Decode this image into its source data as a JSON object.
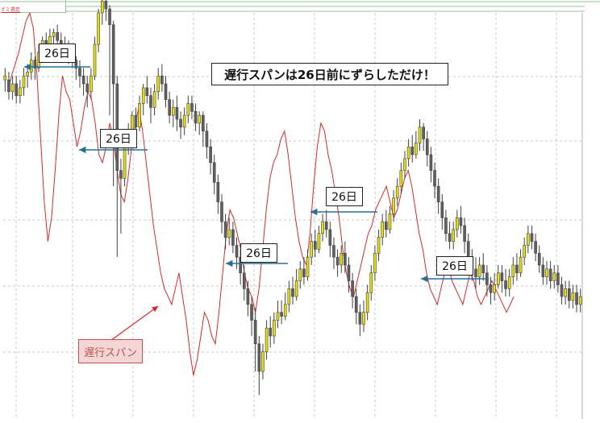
{
  "header": {
    "tab_label": "ｶﾞｽ 週足",
    "colors": {
      "tab_border": "#9bbf9b",
      "tab_text": "#cc2a2a"
    }
  },
  "annotations": {
    "headline": "遅行スパンは26日前にずらしただけ！",
    "shift_labels": [
      "26日",
      "26日",
      "26日",
      "26日",
      "26日"
    ],
    "legend_label": "遅行スパン"
  },
  "chart_data": {
    "type": "candlestick",
    "title": "",
    "xlabel": "",
    "ylabel": "",
    "x_range": [
      0,
      180
    ],
    "y_range": [
      0,
      100
    ],
    "grid": true,
    "series": [
      {
        "kind": "ohlc",
        "candles": [
          [
            84,
            83,
            86,
            80,
            1
          ],
          [
            83,
            80,
            85,
            78,
            0
          ],
          [
            80,
            82,
            84,
            78,
            1
          ],
          [
            82,
            79,
            84,
            77,
            0
          ],
          [
            79,
            81,
            83,
            77,
            1
          ],
          [
            81,
            84,
            86,
            79,
            1
          ],
          [
            84,
            85,
            87,
            81,
            1
          ],
          [
            85,
            88,
            90,
            83,
            1
          ],
          [
            88,
            86,
            89,
            83,
            0
          ],
          [
            86,
            90,
            92,
            85,
            1
          ],
          [
            90,
            93,
            94,
            88,
            1
          ],
          [
            93,
            91,
            95,
            89,
            0
          ],
          [
            91,
            94,
            96,
            90,
            1
          ],
          [
            94,
            95,
            96,
            92,
            1
          ],
          [
            95,
            93,
            97,
            91,
            0
          ],
          [
            93,
            91,
            95,
            89,
            0
          ],
          [
            91,
            92,
            94,
            88,
            1
          ],
          [
            92,
            90,
            93,
            87,
            0
          ],
          [
            90,
            88,
            92,
            86,
            0
          ],
          [
            88,
            86,
            89,
            83,
            0
          ],
          [
            86,
            84,
            88,
            81,
            0
          ],
          [
            84,
            82,
            86,
            79,
            0
          ],
          [
            82,
            80,
            84,
            76,
            0
          ],
          [
            80,
            84,
            86,
            78,
            1
          ],
          [
            84,
            92,
            94,
            83,
            1
          ],
          [
            92,
            100,
            101,
            90,
            1
          ],
          [
            100,
            103,
            104,
            97,
            1
          ],
          [
            103,
            101,
            104,
            98,
            0
          ],
          [
            101,
            97,
            102,
            74,
            0
          ],
          [
            97,
            82,
            98,
            56,
            0
          ],
          [
            82,
            60,
            84,
            38,
            0
          ],
          [
            60,
            58,
            63,
            44,
            0
          ],
          [
            58,
            66,
            68,
            56,
            1
          ],
          [
            66,
            70,
            72,
            64,
            1
          ],
          [
            70,
            74,
            75,
            66,
            1
          ],
          [
            74,
            71,
            76,
            69,
            0
          ],
          [
            71,
            77,
            79,
            70,
            1
          ],
          [
            77,
            81,
            82,
            74,
            1
          ],
          [
            81,
            79,
            84,
            77,
            0
          ],
          [
            79,
            76,
            81,
            72,
            0
          ],
          [
            76,
            80,
            82,
            74,
            1
          ],
          [
            80,
            84,
            86,
            78,
            1
          ],
          [
            84,
            82,
            87,
            80,
            0
          ],
          [
            82,
            78,
            84,
            76,
            0
          ],
          [
            78,
            74,
            80,
            72,
            0
          ],
          [
            74,
            76,
            78,
            71,
            1
          ],
          [
            76,
            73,
            79,
            70,
            0
          ],
          [
            73,
            71,
            75,
            68,
            0
          ],
          [
            71,
            74,
            76,
            69,
            1
          ],
          [
            74,
            77,
            79,
            72,
            1
          ],
          [
            77,
            75,
            79,
            73,
            0
          ],
          [
            75,
            72,
            77,
            70,
            0
          ],
          [
            72,
            74,
            75,
            69,
            1
          ],
          [
            74,
            70,
            75,
            66,
            0
          ],
          [
            70,
            66,
            72,
            63,
            0
          ],
          [
            66,
            62,
            68,
            59,
            0
          ],
          [
            62,
            57,
            64,
            54,
            0
          ],
          [
            57,
            52,
            59,
            49,
            0
          ],
          [
            52,
            47,
            54,
            44,
            0
          ],
          [
            47,
            43,
            49,
            40,
            0
          ],
          [
            43,
            45,
            48,
            41,
            1
          ],
          [
            45,
            41,
            47,
            39,
            0
          ],
          [
            41,
            38,
            43,
            35,
            0
          ],
          [
            38,
            34,
            40,
            31,
            0
          ],
          [
            34,
            30,
            36,
            27,
            0
          ],
          [
            30,
            26,
            32,
            23,
            0
          ],
          [
            26,
            22,
            28,
            18,
            0
          ],
          [
            22,
            16,
            25,
            9,
            0
          ],
          [
            16,
            9,
            18,
            3,
            0
          ],
          [
            9,
            14,
            16,
            7,
            1
          ],
          [
            14,
            20,
            22,
            12,
            1
          ],
          [
            20,
            18,
            23,
            15,
            0
          ],
          [
            18,
            22,
            24,
            16,
            1
          ],
          [
            22,
            24,
            27,
            20,
            1
          ],
          [
            24,
            23,
            27,
            21,
            0
          ],
          [
            23,
            26,
            29,
            22,
            1
          ],
          [
            26,
            30,
            32,
            24,
            1
          ],
          [
            30,
            28,
            33,
            26,
            0
          ],
          [
            28,
            32,
            35,
            27,
            1
          ],
          [
            32,
            35,
            37,
            30,
            1
          ],
          [
            35,
            33,
            38,
            31,
            0
          ],
          [
            33,
            38,
            40,
            32,
            1
          ],
          [
            38,
            42,
            44,
            36,
            1
          ],
          [
            42,
            40,
            45,
            38,
            0
          ],
          [
            40,
            44,
            46,
            39,
            1
          ],
          [
            44,
            47,
            49,
            42,
            1
          ],
          [
            47,
            45,
            50,
            43,
            0
          ],
          [
            45,
            41,
            47,
            38,
            0
          ],
          [
            41,
            38,
            43,
            35,
            0
          ],
          [
            38,
            36,
            40,
            33,
            0
          ],
          [
            36,
            39,
            41,
            34,
            1
          ],
          [
            39,
            36,
            42,
            34,
            0
          ],
          [
            36,
            32,
            38,
            29,
            0
          ],
          [
            32,
            28,
            34,
            25,
            0
          ],
          [
            28,
            24,
            30,
            21,
            0
          ],
          [
            24,
            21,
            26,
            18,
            0
          ],
          [
            21,
            24,
            27,
            19,
            1
          ],
          [
            24,
            29,
            31,
            22,
            1
          ],
          [
            29,
            34,
            36,
            27,
            1
          ],
          [
            34,
            39,
            41,
            32,
            1
          ],
          [
            39,
            43,
            45,
            37,
            1
          ],
          [
            43,
            47,
            49,
            41,
            1
          ],
          [
            47,
            45,
            50,
            43,
            0
          ],
          [
            45,
            49,
            51,
            44,
            1
          ],
          [
            49,
            53,
            55,
            47,
            1
          ],
          [
            53,
            56,
            58,
            51,
            1
          ],
          [
            56,
            60,
            62,
            54,
            1
          ],
          [
            60,
            63,
            65,
            58,
            1
          ],
          [
            63,
            66,
            68,
            61,
            1
          ],
          [
            66,
            64,
            69,
            62,
            0
          ],
          [
            64,
            67,
            70,
            63,
            1
          ],
          [
            67,
            71,
            73,
            65,
            1
          ],
          [
            71,
            68,
            72,
            65,
            0
          ],
          [
            68,
            64,
            70,
            61,
            0
          ],
          [
            64,
            60,
            66,
            57,
            0
          ],
          [
            60,
            56,
            62,
            53,
            0
          ],
          [
            56,
            52,
            58,
            49,
            0
          ],
          [
            52,
            48,
            54,
            45,
            0
          ],
          [
            48,
            44,
            50,
            42,
            0
          ],
          [
            44,
            42,
            47,
            40,
            0
          ],
          [
            42,
            45,
            47,
            40,
            1
          ],
          [
            45,
            48,
            50,
            43,
            1
          ],
          [
            48,
            46,
            51,
            44,
            0
          ],
          [
            46,
            42,
            48,
            39,
            0
          ],
          [
            42,
            38,
            44,
            35,
            0
          ],
          [
            38,
            35,
            40,
            32,
            0
          ],
          [
            35,
            33,
            38,
            30,
            0
          ],
          [
            33,
            36,
            38,
            31,
            1
          ],
          [
            36,
            34,
            39,
            32,
            0
          ],
          [
            34,
            31,
            36,
            28,
            0
          ],
          [
            31,
            29,
            33,
            26,
            0
          ],
          [
            29,
            31,
            34,
            27,
            1
          ],
          [
            31,
            34,
            36,
            30,
            1
          ],
          [
            34,
            32,
            36,
            29,
            0
          ],
          [
            32,
            30,
            35,
            28,
            0
          ],
          [
            30,
            33,
            35,
            28,
            1
          ],
          [
            33,
            36,
            38,
            31,
            1
          ],
          [
            36,
            34,
            39,
            32,
            0
          ],
          [
            34,
            38,
            40,
            33,
            1
          ],
          [
            38,
            41,
            43,
            36,
            1
          ],
          [
            41,
            44,
            46,
            39,
            1
          ],
          [
            44,
            42,
            46,
            40,
            0
          ],
          [
            42,
            39,
            44,
            37,
            0
          ],
          [
            39,
            36,
            41,
            34,
            0
          ],
          [
            36,
            33,
            38,
            31,
            0
          ],
          [
            33,
            35,
            37,
            31,
            1
          ],
          [
            35,
            32,
            37,
            30,
            0
          ],
          [
            32,
            34,
            36,
            30,
            1
          ],
          [
            34,
            31,
            36,
            29,
            0
          ],
          [
            31,
            28,
            33,
            26,
            0
          ],
          [
            28,
            30,
            32,
            26,
            1
          ],
          [
            30,
            27,
            32,
            25,
            0
          ],
          [
            27,
            29,
            31,
            25,
            1
          ],
          [
            29,
            26,
            31,
            24,
            0
          ],
          [
            26,
            28,
            30,
            24,
            1
          ]
        ]
      },
      {
        "kind": "line",
        "values": [
          80,
          84,
          87,
          90,
          94,
          98,
          100,
          96,
          84,
          68,
          52,
          42,
          48,
          60,
          74,
          84,
          80,
          78,
          72,
          66,
          70,
          76,
          80,
          78,
          72,
          64,
          62,
          66,
          72,
          68,
          60,
          54,
          52,
          58,
          66,
          72,
          76,
          70,
          62,
          54,
          46,
          40,
          34,
          30,
          28,
          26,
          30,
          34,
          28,
          22,
          14,
          8,
          12,
          18,
          24,
          22,
          18,
          16,
          24,
          34,
          44,
          50,
          48,
          44,
          40,
          34,
          30,
          28,
          24,
          30,
          40,
          50,
          58,
          62,
          64,
          68,
          70,
          64,
          56,
          48,
          42,
          38,
          36,
          44,
          56,
          66,
          72,
          70,
          64,
          60,
          54,
          48,
          40,
          34,
          30,
          28,
          32,
          36,
          40,
          44,
          46,
          50,
          52,
          54,
          56,
          52,
          48,
          50,
          54,
          58,
          60,
          56,
          50,
          44,
          40,
          34,
          30,
          28,
          26,
          30,
          34,
          36,
          32,
          30,
          28,
          26,
          30,
          34,
          32,
          28,
          26,
          28,
          30,
          32,
          30,
          28,
          26,
          24,
          26,
          28
        ]
      }
    ]
  },
  "style": {
    "up_color": "#e8e000",
    "down_color": "#606060",
    "line_color": "#d62a2a",
    "arrow_color": "#2a6e95",
    "grid_color": "#c8c8c8"
  }
}
